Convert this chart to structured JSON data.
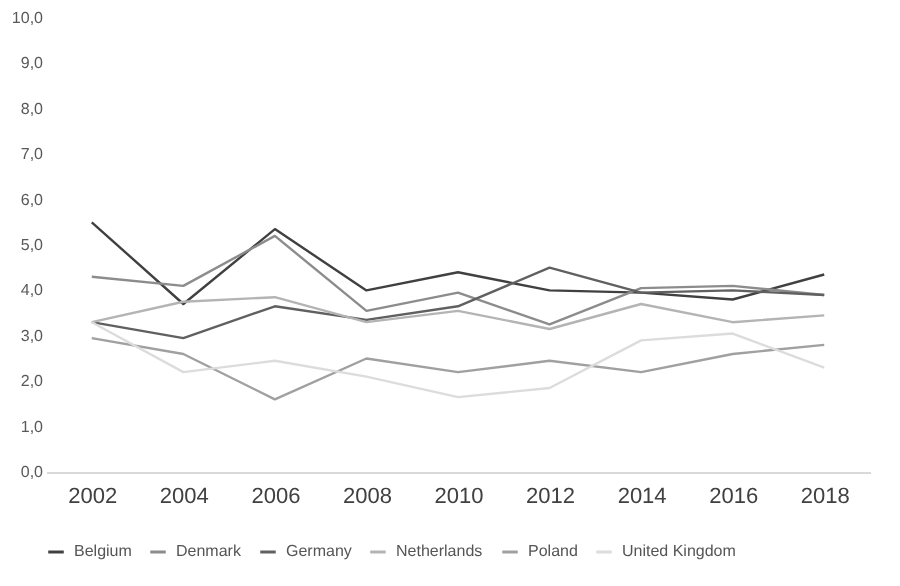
{
  "chart_data": {
    "type": "line",
    "categories": [
      "2002",
      "2004",
      "2006",
      "2008",
      "2010",
      "2012",
      "2014",
      "2016",
      "2018"
    ],
    "series": [
      {
        "name": "Belgium",
        "color": "#404040",
        "values": [
          5.5,
          3.7,
          5.35,
          4.0,
          4.4,
          4.0,
          3.95,
          3.8,
          4.35
        ]
      },
      {
        "name": "Denmark",
        "color": "#8c8c8c",
        "values": [
          4.3,
          4.1,
          5.2,
          3.55,
          3.95,
          3.25,
          4.05,
          4.1,
          3.9
        ]
      },
      {
        "name": "Germany",
        "color": "#606060",
        "values": [
          3.3,
          2.95,
          3.65,
          3.35,
          3.65,
          4.5,
          3.95,
          4.0,
          3.9
        ]
      },
      {
        "name": "Netherlands",
        "color": "#b4b4b4",
        "values": [
          3.3,
          3.75,
          3.85,
          3.3,
          3.55,
          3.15,
          3.7,
          3.3,
          3.45
        ]
      },
      {
        "name": "Poland",
        "color": "#a0a0a0",
        "values": [
          2.95,
          2.6,
          1.6,
          2.5,
          2.2,
          2.45,
          2.2,
          2.6,
          2.8
        ]
      },
      {
        "name": "United Kingdom",
        "color": "#dcdcdc",
        "values": [
          3.3,
          2.2,
          2.45,
          2.1,
          1.65,
          1.85,
          2.9,
          3.05,
          2.3
        ]
      }
    ],
    "ylim": [
      0,
      10
    ],
    "yticks": [
      {
        "value": 0,
        "label": "0,0"
      },
      {
        "value": 1,
        "label": "1,0"
      },
      {
        "value": 2,
        "label": "2,0"
      },
      {
        "value": 3,
        "label": "3,0"
      },
      {
        "value": 4,
        "label": "4,0"
      },
      {
        "value": 5,
        "label": "5,0"
      },
      {
        "value": 6,
        "label": "6,0"
      },
      {
        "value": 7,
        "label": "7,0"
      },
      {
        "value": 8,
        "label": "8,0"
      },
      {
        "value": 9,
        "label": "9,0"
      },
      {
        "value": 10,
        "label": "10,0"
      }
    ],
    "grid": false,
    "legend": "bottom",
    "marker": "none",
    "line_style": "solid"
  }
}
